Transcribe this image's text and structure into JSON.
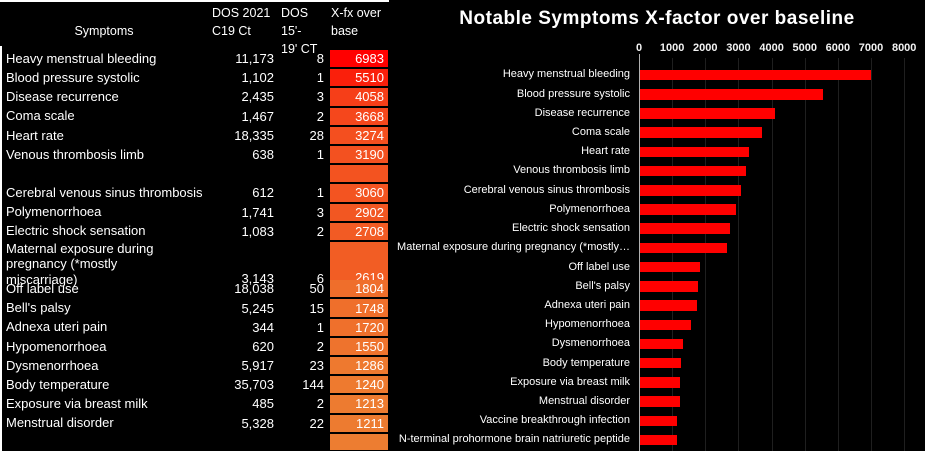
{
  "table": {
    "headers": {
      "symptoms": "Symptoms",
      "dos_2021_line1": "DOS 2021",
      "dos_2021_line2": "C19 Ct",
      "dos_1519_line1": "DOS 15'-",
      "dos_1519_line2": "19' CT",
      "xfx_line1": "X-fx over",
      "xfx_line2": "base"
    },
    "rows": [
      {
        "symptom": "Heavy menstrual bleeding",
        "dos_2021_c19_ct": "11,173",
        "dos_1519_ct": "8",
        "xfx_over_base": "6983",
        "cell_color": "#FF0000"
      },
      {
        "symptom": "Blood pressure systolic",
        "dos_2021_c19_ct": "1,102",
        "dos_1519_ct": "1",
        "xfx_over_base": "5510",
        "cell_color": "#FA1F0B"
      },
      {
        "symptom": "Disease recurrence",
        "dos_2021_c19_ct": "2,435",
        "dos_1519_ct": "3",
        "xfx_over_base": "4058",
        "cell_color": "#F63E18"
      },
      {
        "symptom": "Coma scale",
        "dos_2021_c19_ct": "1,467",
        "dos_1519_ct": "2",
        "xfx_over_base": "3668",
        "cell_color": "#F5471C"
      },
      {
        "symptom": "Heart rate",
        "dos_2021_c19_ct": "18,335",
        "dos_1519_ct": "28",
        "xfx_over_base": "3274",
        "cell_color": "#F44F1F"
      },
      {
        "symptom": "Venous thrombosis limb",
        "dos_2021_c19_ct": "638",
        "dos_1519_ct": "1",
        "xfx_over_base": "3190",
        "cell_color": "#F35120"
      },
      {
        "symptom": "",
        "dos_2021_c19_ct": "",
        "dos_1519_ct": "",
        "xfx_over_base": "",
        "cell_color": "#F35320",
        "blank": true
      },
      {
        "symptom": "Cerebral venous sinus thrombosis",
        "dos_2021_c19_ct": "612",
        "dos_1519_ct": "1",
        "xfx_over_base": "3060",
        "cell_color": "#F35421"
      },
      {
        "symptom": "Polymenorrhoea",
        "dos_2021_c19_ct": "1,741",
        "dos_1519_ct": "3",
        "xfx_over_base": "2902",
        "cell_color": "#F25722"
      },
      {
        "symptom": "Electric shock sensation",
        "dos_2021_c19_ct": "1,083",
        "dos_1519_ct": "2",
        "xfx_over_base": "2708",
        "cell_color": "#F25B24"
      },
      {
        "symptom": "Maternal exposure during pregnancy (*mostly miscarriage)",
        "dos_2021_c19_ct": "3,143",
        "dos_1519_ct": "6",
        "xfx_over_base": "2619",
        "cell_color": "#F25D24",
        "tall": true
      },
      {
        "symptom": "Off label use",
        "dos_2021_c19_ct": "18,038",
        "dos_1519_ct": "50",
        "xfx_over_base": "1804",
        "cell_color": "#EF6E2B"
      },
      {
        "symptom": "Bell's palsy",
        "dos_2021_c19_ct": "5,245",
        "dos_1519_ct": "15",
        "xfx_over_base": "1748",
        "cell_color": "#EF6F2B"
      },
      {
        "symptom": "Adnexa uteri pain",
        "dos_2021_c19_ct": "344",
        "dos_1519_ct": "1",
        "xfx_over_base": "1720",
        "cell_color": "#EF702C"
      },
      {
        "symptom": "Hypomenorrhoea",
        "dos_2021_c19_ct": "620",
        "dos_1519_ct": "2",
        "xfx_over_base": "1550",
        "cell_color": "#EE732D"
      },
      {
        "symptom": "Dysmenorrhoea",
        "dos_2021_c19_ct": "5,917",
        "dos_1519_ct": "23",
        "xfx_over_base": "1286",
        "cell_color": "#EE792F"
      },
      {
        "symptom": "Body temperature",
        "dos_2021_c19_ct": "35,703",
        "dos_1519_ct": "144",
        "xfx_over_base": "1240",
        "cell_color": "#EE7A2F"
      },
      {
        "symptom": "Exposure via breast milk",
        "dos_2021_c19_ct": "485",
        "dos_1519_ct": "2",
        "xfx_over_base": "1213",
        "cell_color": "#ED7B30"
      },
      {
        "symptom": "Menstrual disorder",
        "dos_2021_c19_ct": "5,328",
        "dos_1519_ct": "22",
        "xfx_over_base": "1211",
        "cell_color": "#ED7B30"
      },
      {
        "symptom": "",
        "dos_2021_c19_ct": "",
        "dos_1519_ct": "",
        "xfx_over_base": "",
        "cell_color": "#ED7D31",
        "blank": true,
        "fill": true
      }
    ]
  },
  "chart_data": {
    "type": "bar",
    "orientation": "horizontal",
    "title": "Notable Symptoms X-factor over baseline",
    "xlabel": "",
    "ylabel": "",
    "xlim": [
      0,
      8000
    ],
    "x_ticks": [
      0,
      1000,
      2000,
      3000,
      4000,
      5000,
      6000,
      7000,
      8000
    ],
    "grid": true,
    "legend": false,
    "bar_color": "#FF0000",
    "categories": [
      "Heavy menstrual bleeding",
      "Blood pressure systolic",
      "Disease recurrence",
      "Coma scale",
      "Heart rate",
      "Venous thrombosis limb",
      "Cerebral venous sinus thrombosis",
      "Polymenorrhoea",
      "Electric shock sensation",
      "Maternal exposure during pregnancy (*mostly…",
      "Off label use",
      "Bell's palsy",
      "Adnexa uteri pain",
      "Hypomenorrhoea",
      "Dysmenorrhoea",
      "Body temperature",
      "Exposure via breast milk",
      "Menstrual disorder",
      "Vaccine breakthrough infection",
      "N-terminal prohormone brain natriuretic peptide"
    ],
    "values": [
      6983,
      5510,
      4058,
      3668,
      3274,
      3190,
      3060,
      2902,
      2708,
      2619,
      1804,
      1748,
      1720,
      1550,
      1286,
      1240,
      1213,
      1211,
      1110,
      1130
    ]
  },
  "colors": {
    "background": "#000000",
    "text": "#FFFFFF",
    "bar": "#FF0000",
    "heat_max": "#FF0000",
    "heat_min": "#ED7D31",
    "axis_line": "#B0B0B0",
    "gridline": "#1F1F1F",
    "table_border": "#FFFFFF"
  }
}
